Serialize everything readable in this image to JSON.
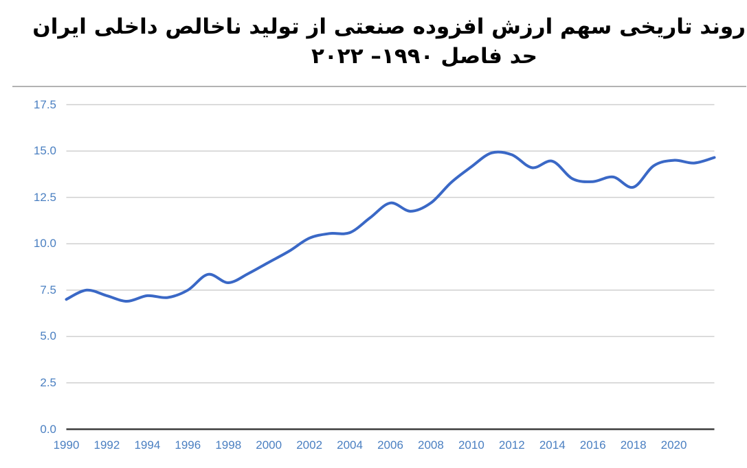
{
  "title": {
    "line1": "روند تاریخی سهم ارزش افزوده صنعتی از تولید ناخالص داخلی ایران",
    "line2": "حد فاصل ۱۹۹۰– ۲۰۲۲"
  },
  "chart_data": {
    "type": "line",
    "title": "روند تاریخی سهم ارزش افزوده صنعتی از تولید ناخالص داخلی ایران حد فاصل ۱۹۹۰– ۲۰۲۲",
    "x": [
      1990,
      1991,
      1992,
      1993,
      1994,
      1995,
      1996,
      1997,
      1998,
      1999,
      2000,
      2001,
      2002,
      2003,
      2004,
      2005,
      2006,
      2007,
      2008,
      2009,
      2010,
      2011,
      2012,
      2013,
      2014,
      2015,
      2016,
      2017,
      2018,
      2019,
      2020,
      2021,
      2022
    ],
    "values": [
      7.0,
      7.5,
      7.2,
      6.9,
      7.2,
      7.1,
      7.5,
      8.35,
      7.9,
      8.4,
      9.0,
      9.6,
      10.3,
      10.55,
      10.6,
      11.4,
      12.2,
      11.75,
      12.2,
      13.3,
      14.15,
      14.9,
      14.8,
      14.1,
      14.45,
      13.5,
      13.35,
      13.6,
      13.05,
      14.2,
      14.5,
      14.35,
      14.65
    ],
    "xlabel": "",
    "ylabel": "",
    "xlim": [
      1990,
      2022
    ],
    "ylim": [
      0,
      17.5
    ],
    "xtick_values": [
      1990,
      1992,
      1994,
      1996,
      1998,
      2000,
      2002,
      2004,
      2006,
      2008,
      2010,
      2012,
      2014,
      2016,
      2018,
      2020
    ],
    "xtick_labels": [
      "1990",
      "1992",
      "1994",
      "1996",
      "1998",
      "2000",
      "2002",
      "2004",
      "2006",
      "2008",
      "2010",
      "2012",
      "2014",
      "2016",
      "2018",
      "2020"
    ],
    "ytick_values": [
      0,
      2.5,
      5,
      7.5,
      10,
      12.5,
      15,
      17.5
    ],
    "ytick_labels": [
      "0.0",
      "2.5",
      "5.0",
      "7.5",
      "10.0",
      "12.5",
      "15.0",
      "17.5"
    ],
    "grid": true,
    "legend": "none",
    "line_color": "#3a68c6",
    "tick_label_color": "#4a7fc1",
    "grid_color": "#cfcfcf",
    "axis_color": "#3c3c3c",
    "divider_color": "#b2b2b2",
    "smooth": true
  }
}
